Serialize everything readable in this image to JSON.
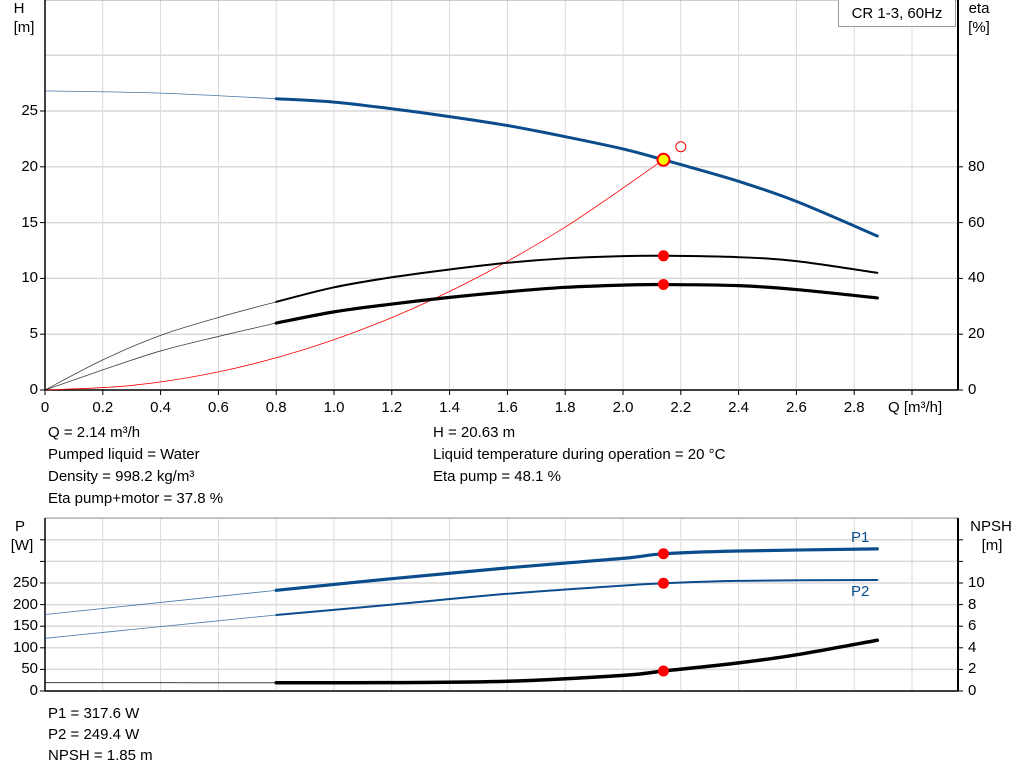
{
  "title_box": "CR 1-3, 60Hz",
  "info_top": {
    "left": [
      "Q = 2.14 m³/h",
      "Pumped liquid = Water",
      "Density = 998.2 kg/m³",
      "Eta pump+motor = 37.8 %"
    ],
    "right": [
      "H = 20.63 m",
      "Liquid temperature during operation = 20 °C",
      "Eta pump = 48.1 %"
    ]
  },
  "info_bottom": [
    "P1 = 317.6 W",
    "P2 = 249.4 W",
    "NPSH = 1.85 m"
  ],
  "colors": {
    "head": "#0b4d8c",
    "eta": "#000000",
    "system": "#ff0000",
    "power": "#0b4d8c",
    "npsh": "#000000",
    "marker": "#ff0000",
    "duty_point": "#ffff00",
    "grid": "#d9d9d9"
  },
  "chart_data": [
    {
      "type": "line",
      "ylabel_left": "H",
      "yunit_left": "[m]",
      "ylabel_right": "eta",
      "yunit_right": "[%]",
      "xlabel": "Q [m³/h]",
      "xlim": [
        0,
        3.2
      ],
      "ylim_left": [
        0,
        30
      ],
      "ylim_right": [
        0,
        120
      ],
      "x_ticks": [
        "0",
        "0.2",
        "0.4",
        "0.6",
        "0.8",
        "1.0",
        "1.2",
        "1.4",
        "1.6",
        "1.8",
        "2.0",
        "2.2",
        "2.4",
        "2.6",
        "2.8"
      ],
      "y_ticks_left": [
        "0",
        "5",
        "10",
        "15",
        "20",
        "25"
      ],
      "y_ticks_right": [
        "0",
        "20",
        "40",
        "60",
        "80"
      ],
      "grid": true,
      "operating_range_start_q": 0.8,
      "series": [
        {
          "key": "head",
          "axis": "left",
          "x": [
            0,
            0.4,
            0.8,
            1.0,
            1.2,
            1.4,
            1.6,
            1.8,
            2.0,
            2.14,
            2.2,
            2.4,
            2.6,
            2.88
          ],
          "y": [
            26.8,
            26.6,
            26.1,
            25.8,
            25.2,
            24.5,
            23.7,
            22.7,
            21.6,
            20.63,
            20.2,
            18.7,
            16.9,
            13.8
          ]
        },
        {
          "key": "eta_pump",
          "axis": "right",
          "x": [
            0,
            0.2,
            0.4,
            0.6,
            0.8,
            1.0,
            1.2,
            1.4,
            1.6,
            1.8,
            2.0,
            2.14,
            2.4,
            2.6,
            2.88
          ],
          "y": [
            0,
            10.8,
            19.6,
            26,
            31.6,
            36.8,
            40.4,
            43.2,
            45.6,
            47.2,
            48,
            48.1,
            47.6,
            46.2,
            42
          ]
        },
        {
          "key": "eta_pump_motor",
          "axis": "right",
          "x": [
            0,
            0.2,
            0.4,
            0.6,
            0.8,
            1.0,
            1.2,
            1.4,
            1.6,
            1.8,
            2.0,
            2.14,
            2.4,
            2.6,
            2.88
          ],
          "y": [
            0,
            7.2,
            14,
            19.2,
            24,
            28,
            30.8,
            33.2,
            35.2,
            36.8,
            37.6,
            37.8,
            37.4,
            36,
            33
          ]
        },
        {
          "key": "system",
          "axis": "left",
          "x": [
            0,
            0.3,
            0.6,
            0.9,
            1.2,
            1.5,
            1.8,
            2.14
          ],
          "y": [
            0,
            0.41,
            1.62,
            3.65,
            6.49,
            10.14,
            14.6,
            20.63
          ]
        }
      ],
      "duty_point": {
        "q": 2.14,
        "h": 20.63,
        "eta_pump": 48.1,
        "eta_pump_motor": 37.8
      },
      "requested_point": {
        "q": 2.2,
        "h": 21.8
      }
    },
    {
      "type": "line",
      "ylabel_left": "P",
      "yunit_left": "[W]",
      "ylabel_right": "NPSH",
      "yunit_right": "[m]",
      "xlim": [
        0,
        3.2
      ],
      "ylim_left": [
        0,
        400
      ],
      "ylim_right": [
        0,
        16
      ],
      "y_ticks_left": [
        "0",
        "50",
        "100",
        "150",
        "200",
        "250"
      ],
      "y_ticks_right": [
        "0",
        "2",
        "4",
        "6",
        "8",
        "10"
      ],
      "grid": true,
      "series": [
        {
          "key": "p1",
          "name": "P1",
          "axis": "left",
          "x": [
            0,
            0.4,
            0.8,
            1.2,
            1.6,
            2.0,
            2.14,
            2.4,
            2.88
          ],
          "y": [
            177,
            205,
            233,
            260,
            285,
            307,
            317.6,
            324,
            329
          ]
        },
        {
          "key": "p2",
          "name": "P2",
          "axis": "left",
          "x": [
            0,
            0.4,
            0.8,
            1.2,
            1.6,
            2.0,
            2.14,
            2.4,
            2.88
          ],
          "y": [
            122,
            149,
            176,
            200,
            225,
            244,
            249.4,
            255,
            257
          ]
        },
        {
          "key": "npsh",
          "axis": "right",
          "x": [
            0,
            0.4,
            0.8,
            1.2,
            1.6,
            2.0,
            2.14,
            2.4,
            2.6,
            2.88
          ],
          "y": [
            0.78,
            0.77,
            0.76,
            0.78,
            0.9,
            1.45,
            1.85,
            2.6,
            3.35,
            4.7
          ]
        }
      ],
      "duty_point": {
        "q": 2.14,
        "p1": 317.6,
        "p2": 249.4,
        "npsh": 1.85
      }
    }
  ]
}
